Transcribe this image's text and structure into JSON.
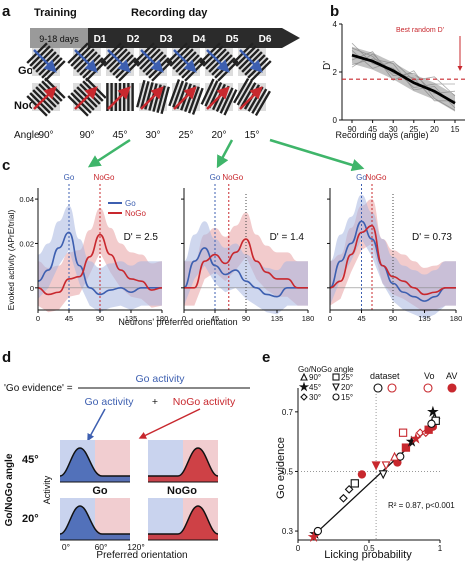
{
  "panel_labels": {
    "a": "a",
    "b": "b",
    "c": "c",
    "d": "d",
    "e": "e"
  },
  "panel_a": {
    "training_header": "Training",
    "recording_header": "Recording day",
    "training_label": "9-18 days",
    "days": [
      "D1",
      "D2",
      "D3",
      "D4",
      "D5",
      "D6"
    ],
    "go_label": "Go",
    "nogo_label": "NoGo",
    "angle_label": "Angle",
    "angles": [
      "90°",
      "90°",
      "45°",
      "30°",
      "25°",
      "20°",
      "15°"
    ],
    "colors": {
      "go": "#3d5fb0",
      "nogo": "#c8282e",
      "arrow_bar": "#2b2b2b"
    }
  },
  "panel_b": {
    "ylabel": "D'",
    "xlabel": "Recording days (angle)",
    "annotation": "Best random D'",
    "chart_data": {
      "type": "line",
      "categories": [
        "90",
        "45",
        "30",
        "25",
        "20",
        "15"
      ],
      "series": [
        {
          "values": [
            2.7,
            2.45,
            2.05,
            1.55,
            1.2,
            0.7
          ]
        }
      ],
      "reference_line": 1.7,
      "ylim": [
        0,
        4
      ],
      "yticks": [
        "0",
        "2",
        "4"
      ]
    }
  },
  "panel_c": {
    "ylabel": "Evoked activity (APrE/trial)",
    "xlabel": "Neurons' preferred orientation",
    "legend": [
      "Go",
      "NoGo"
    ],
    "subplots": [
      {
        "dprime": "D' = 2.5",
        "go_marker": "Go",
        "nogo_marker": "NoGo"
      },
      {
        "dprime": "D' = 1.4",
        "go_marker": "Go",
        "nogo_marker": "NoGo"
      },
      {
        "dprime": "D' = 0.73",
        "go_marker": "Go",
        "nogo_marker": "NoGo"
      }
    ],
    "yticks": [
      "0",
      "0.02",
      "0.04"
    ],
    "xticks": [
      "0",
      "45",
      "90",
      "135",
      "180"
    ],
    "chart_data": {
      "type": "line",
      "x": [
        0,
        15,
        30,
        45,
        60,
        75,
        90,
        105,
        120,
        135,
        150,
        165,
        180
      ],
      "plots": [
        {
          "go": [
            0.003,
            0.008,
            0.018,
            0.025,
            0.01,
            0.0,
            -0.003,
            -0.001,
            0.0,
            -0.002,
            0.0,
            0.0,
            0.0
          ],
          "nogo": [
            0.0,
            -0.003,
            -0.002,
            0.004,
            0.005,
            0.014,
            0.024,
            0.015,
            0.008,
            0.004,
            0.003,
            -0.001,
            0.0
          ]
        },
        {
          "go": [
            0.0,
            0.012,
            0.018,
            0.01,
            0.006,
            0.008,
            0.003,
            0.0,
            -0.003,
            -0.004,
            0.0,
            0.0,
            0.0
          ],
          "nogo": [
            0.0,
            0.0,
            0.012,
            0.015,
            0.011,
            0.016,
            0.022,
            0.012,
            0.007,
            0.004,
            0.004,
            0.0,
            0.0
          ]
        },
        {
          "go": [
            0.0,
            0.012,
            0.02,
            0.03,
            0.022,
            0.01,
            0.002,
            -0.002,
            -0.004,
            -0.006,
            -0.004,
            0.0,
            0.0
          ],
          "nogo": [
            0.0,
            0.003,
            0.015,
            0.025,
            0.028,
            0.01,
            0.005,
            0.003,
            0.0,
            -0.003,
            -0.002,
            0.0,
            0.0
          ]
        }
      ],
      "ylim": [
        -0.01,
        0.045
      ],
      "xlim": [
        0,
        180
      ]
    }
  },
  "panel_d": {
    "formula_lhs": "'Go evidence' =",
    "numerator": "Go activity",
    "den_go": "Go activity",
    "plus": "+",
    "den_nogo": "NoGo activity",
    "ylabel_outer": "Go/NoGo angle",
    "ylabel_inner": "Activity",
    "angle_45": "45°",
    "angle_20": "20°",
    "go_label": "Go",
    "nogo_label": "NoGo",
    "xlabel": "Preferred orientation",
    "xticks": [
      "0°",
      "60°",
      "120°"
    ]
  },
  "panel_e": {
    "ylabel": "Go evidence",
    "xlabel": "Licking probability",
    "legend_title": "Go/NoGo angle",
    "legend_angles": [
      "90°",
      "25°",
      "45°",
      "20°",
      "30°",
      "15°"
    ],
    "legend_dataset": "dataset",
    "legend_vo": "Vo",
    "legend_av": "AV",
    "stats": "R² = 0.87, p<0.001",
    "yticks": [
      "0.3",
      "0.5",
      "0.7"
    ],
    "xticks": [
      "0",
      "0.5",
      "1"
    ],
    "chart_data": {
      "type": "scatter",
      "xlim": [
        0,
        1
      ],
      "ylim": [
        0.27,
        0.78
      ],
      "reference_x": 0.55,
      "reference_y": 0.5,
      "fit": [
        [
          0.12,
          0.29
        ],
        [
          1.0,
          0.68
        ]
      ],
      "points": [
        {
          "x": 0.12,
          "y": 0.29,
          "m": "star",
          "c": "k",
          "f": 1
        },
        {
          "x": 0.14,
          "y": 0.3,
          "m": "circle",
          "c": "k",
          "f": 0
        },
        {
          "x": 0.11,
          "y": 0.28,
          "m": "star",
          "c": "r",
          "f": 1
        },
        {
          "x": 0.32,
          "y": 0.41,
          "m": "diamond",
          "c": "k",
          "f": 0
        },
        {
          "x": 0.36,
          "y": 0.44,
          "m": "diamond",
          "c": "k",
          "f": 0
        },
        {
          "x": 0.4,
          "y": 0.46,
          "m": "square",
          "c": "k",
          "f": 0
        },
        {
          "x": 0.45,
          "y": 0.49,
          "m": "circle",
          "c": "r",
          "f": 1
        },
        {
          "x": 0.55,
          "y": 0.52,
          "m": "triangle-down",
          "c": "r",
          "f": 1
        },
        {
          "x": 0.6,
          "y": 0.49,
          "m": "triangle-down",
          "c": "k",
          "f": 0
        },
        {
          "x": 0.62,
          "y": 0.52,
          "m": "triangle-down",
          "c": "r",
          "f": 0
        },
        {
          "x": 0.7,
          "y": 0.53,
          "m": "circle",
          "c": "r",
          "f": 1
        },
        {
          "x": 0.72,
          "y": 0.55,
          "m": "circle",
          "c": "k",
          "f": 0
        },
        {
          "x": 0.68,
          "y": 0.55,
          "m": "triangle",
          "c": "r",
          "f": 0
        },
        {
          "x": 0.76,
          "y": 0.58,
          "m": "square",
          "c": "r",
          "f": 1
        },
        {
          "x": 0.8,
          "y": 0.6,
          "m": "star",
          "c": "k",
          "f": 1
        },
        {
          "x": 0.83,
          "y": 0.61,
          "m": "star",
          "c": "r",
          "f": 1
        },
        {
          "x": 0.74,
          "y": 0.63,
          "m": "square",
          "c": "r",
          "f": 0
        },
        {
          "x": 0.86,
          "y": 0.63,
          "m": "diamond",
          "c": "r",
          "f": 0
        },
        {
          "x": 0.9,
          "y": 0.63,
          "m": "diamond",
          "c": "r",
          "f": 0
        },
        {
          "x": 0.92,
          "y": 0.64,
          "m": "square",
          "c": "r",
          "f": 1
        },
        {
          "x": 0.95,
          "y": 0.65,
          "m": "circle",
          "c": "r",
          "f": 1
        },
        {
          "x": 0.96,
          "y": 0.68,
          "m": "triangle",
          "c": "k",
          "f": 0
        },
        {
          "x": 0.97,
          "y": 0.67,
          "m": "square",
          "c": "k",
          "f": 0
        },
        {
          "x": 0.95,
          "y": 0.7,
          "m": "star",
          "c": "k",
          "f": 1
        },
        {
          "x": 0.94,
          "y": 0.66,
          "m": "circle",
          "c": "k",
          "f": 0
        }
      ]
    }
  }
}
